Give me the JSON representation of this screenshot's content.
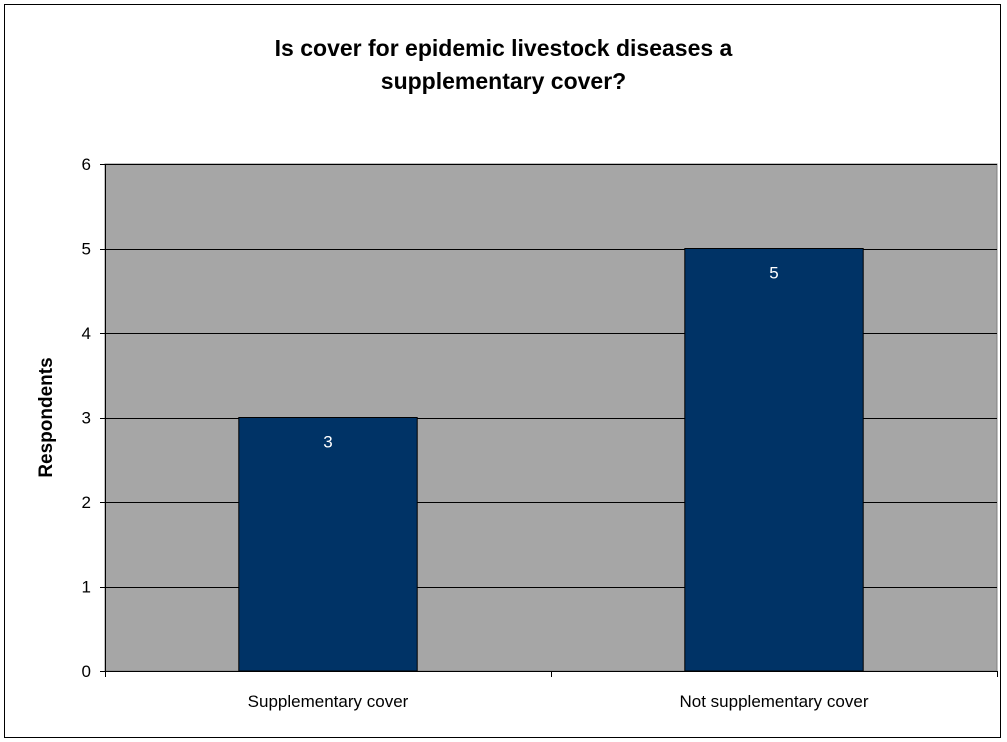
{
  "chart_data": {
    "type": "bar",
    "title": [
      "Is cover for epidemic livestock diseases a",
      "supplementary cover?"
    ],
    "xlabel": "",
    "ylabel": "Respondents",
    "categories": [
      "Supplementary cover",
      "Not supplementary cover"
    ],
    "values": [
      3,
      5
    ],
    "data_labels": [
      "3",
      "5"
    ],
    "ylim": [
      0,
      6
    ],
    "yticks": [
      "0",
      "1",
      "2",
      "3",
      "4",
      "5",
      "6"
    ],
    "grid": true,
    "legend": "none",
    "colors": {
      "bar": "#003366",
      "plot_area": "#a6a6a6",
      "gridline": "#000000",
      "data_label": "#ffffff"
    }
  }
}
